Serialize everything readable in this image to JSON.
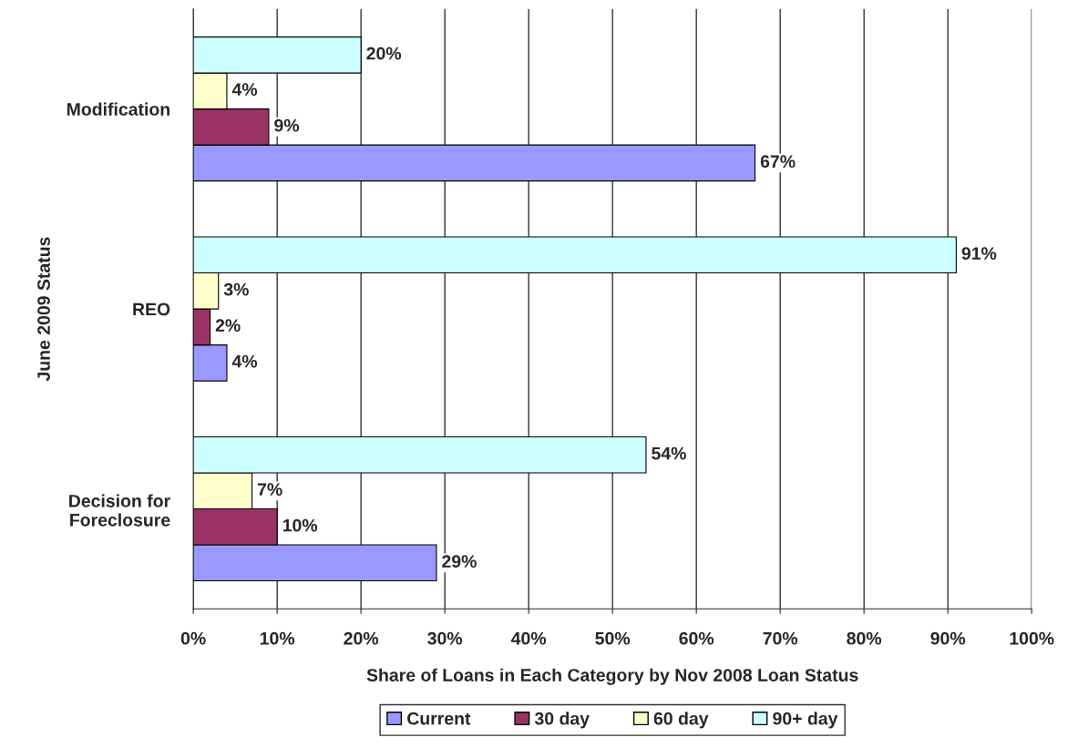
{
  "chart_data": {
    "type": "bar",
    "orientation": "horizontal",
    "categories": [
      "Modification",
      "REO",
      "Decision for\nForeclosure"
    ],
    "series": [
      {
        "name": "Current",
        "color": "#9999ff",
        "values": [
          67,
          4,
          29
        ],
        "value_labels": [
          "67%",
          "4%",
          "29%"
        ]
      },
      {
        "name": "30 day",
        "color": "#993366",
        "values": [
          9,
          2,
          10
        ],
        "value_labels": [
          "9%",
          "2%",
          "10%"
        ]
      },
      {
        "name": "60 day",
        "color": "#ffffcc",
        "values": [
          4,
          3,
          7
        ],
        "value_labels": [
          "4%",
          "3%",
          "7%"
        ]
      },
      {
        "name": "90+ day",
        "color": "#ccffff",
        "values": [
          20,
          91,
          54
        ],
        "value_labels": [
          "20%",
          "91%",
          "54%"
        ]
      }
    ],
    "xlabel": "Share of Loans in Each Category by Nov 2008 Loan Status",
    "ylabel": "June 2009 Status",
    "xlim": [
      0,
      100
    ],
    "xticks": [
      {
        "value": 0,
        "label": "0%"
      },
      {
        "value": 10,
        "label": "10%"
      },
      {
        "value": 20,
        "label": "20%"
      },
      {
        "value": 30,
        "label": "30%"
      },
      {
        "value": 40,
        "label": "40%"
      },
      {
        "value": 50,
        "label": "50%"
      },
      {
        "value": 60,
        "label": "60%"
      },
      {
        "value": 70,
        "label": "70%"
      },
      {
        "value": 80,
        "label": "80%"
      },
      {
        "value": 90,
        "label": "90%"
      },
      {
        "value": 100,
        "label": "100%"
      }
    ],
    "grid": "x",
    "legend": "bottom"
  }
}
